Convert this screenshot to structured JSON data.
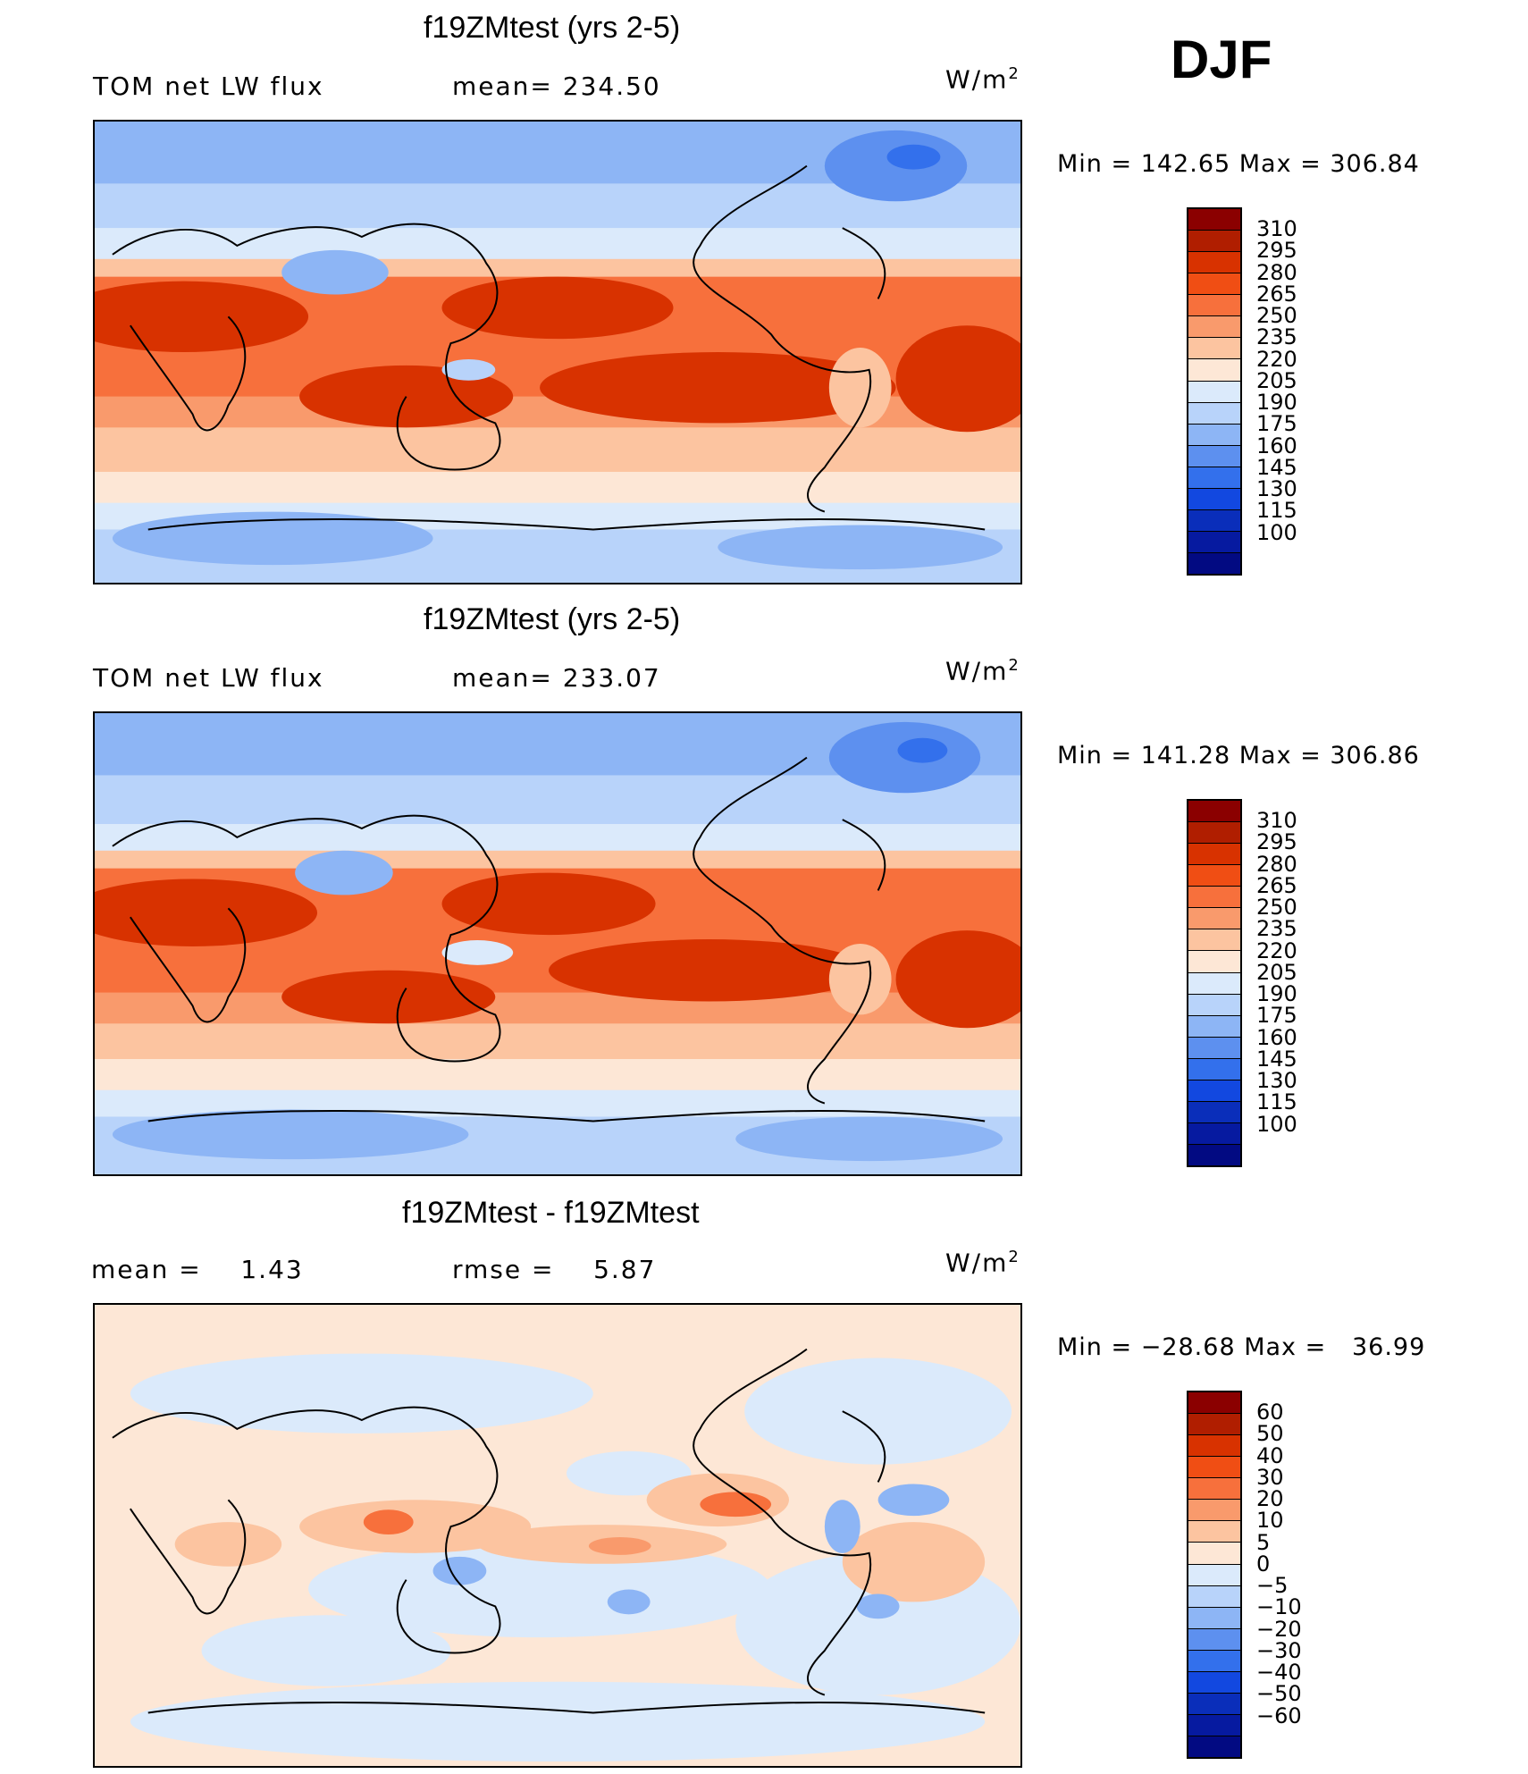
{
  "season": "DJF",
  "units_base": "W/m",
  "units_exp": "2",
  "panels": [
    {
      "title": "f19ZMtest (yrs 2-5)",
      "left_label": "TOM net LW flux",
      "mid_label": "mean= 234.50",
      "minmax": "Min = 142.65 Max = 306.84",
      "colorbar": {
        "colors": [
          "#8b0000",
          "#b01e00",
          "#d83200",
          "#f04e14",
          "#f7703c",
          "#f99a6c",
          "#fcc4a0",
          "#fde7d6",
          "#dbeafb",
          "#b8d3fa",
          "#8db5f5",
          "#5d90ef",
          "#3370ec",
          "#1248e0",
          "#0a2eba",
          "#061aa0",
          "#020a82"
        ],
        "labels": [
          "310",
          "295",
          "280",
          "265",
          "250",
          "235",
          "220",
          "205",
          "190",
          "175",
          "160",
          "145",
          "130",
          "115",
          "100"
        ]
      }
    },
    {
      "title": "f19ZMtest (yrs 2-5)",
      "left_label": "TOM net LW flux",
      "mid_label": "mean= 233.07",
      "minmax": "Min = 141.28 Max = 306.86",
      "colorbar": {
        "colors": [
          "#8b0000",
          "#b01e00",
          "#d83200",
          "#f04e14",
          "#f7703c",
          "#f99a6c",
          "#fcc4a0",
          "#fde7d6",
          "#dbeafb",
          "#b8d3fa",
          "#8db5f5",
          "#5d90ef",
          "#3370ec",
          "#1248e0",
          "#0a2eba",
          "#061aa0",
          "#020a82"
        ],
        "labels": [
          "310",
          "295",
          "280",
          "265",
          "250",
          "235",
          "220",
          "205",
          "190",
          "175",
          "160",
          "145",
          "130",
          "115",
          "100"
        ]
      }
    },
    {
      "title": "f19ZMtest - f19ZMtest",
      "left_label": "mean =    1.43",
      "mid_label": "rmse =    5.87",
      "minmax": "Min = −28.68 Max =   36.99",
      "colorbar": {
        "colors": [
          "#8b0000",
          "#b01e00",
          "#d83200",
          "#f04e14",
          "#f7703c",
          "#f99a6c",
          "#fcc4a0",
          "#fde7d6",
          "#dbeafb",
          "#b8d3fa",
          "#8db5f5",
          "#5d90ef",
          "#3370ec",
          "#1248e0",
          "#0a2eba",
          "#061aa0",
          "#020a82"
        ],
        "labels": [
          "60",
          "50",
          "40",
          "30",
          "20",
          "10",
          "5",
          "0",
          "−5",
          "−10",
          "−20",
          "−30",
          "−40",
          "−50",
          "−60"
        ]
      }
    }
  ]
}
